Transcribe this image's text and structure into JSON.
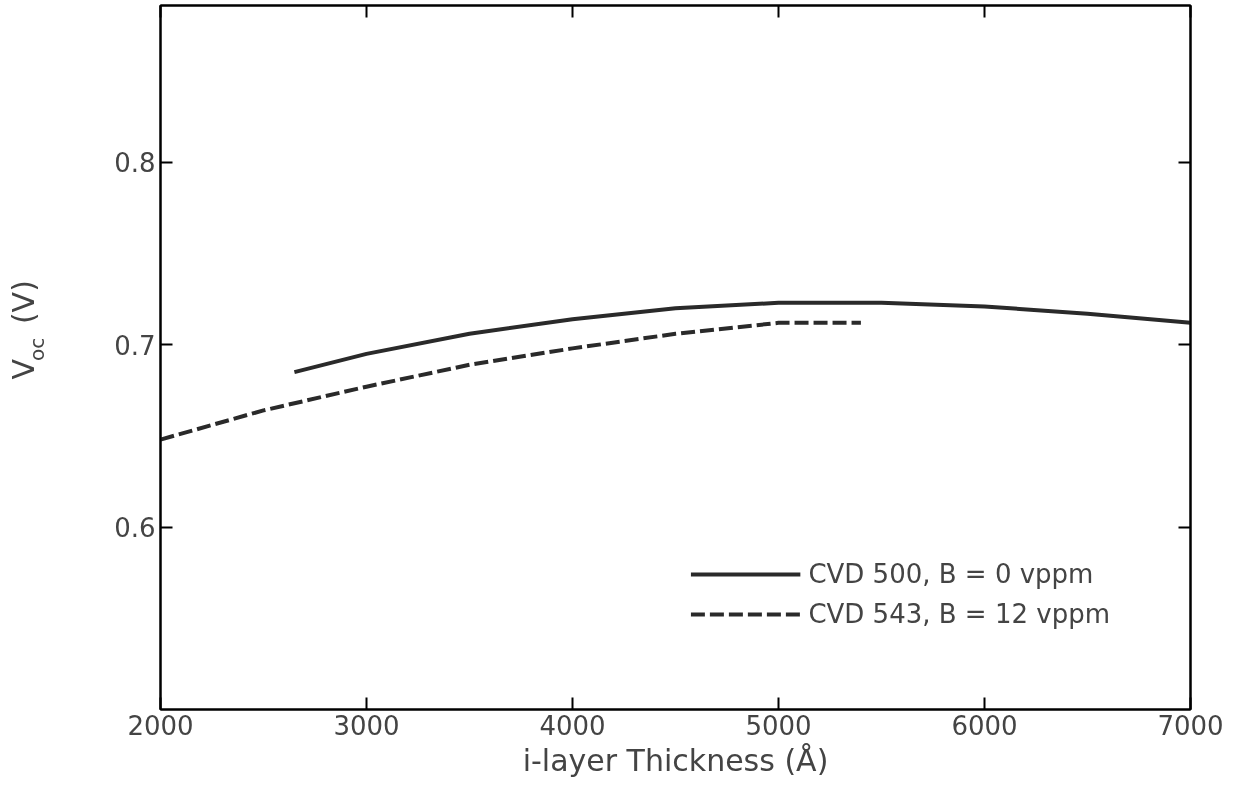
{
  "chart_data": {
    "type": "line",
    "xlabel": "i-layer Thickness (Å)",
    "ylabel": "V$_{oc}$ (V)",
    "xlim": [
      2000,
      7000
    ],
    "ylim": [
      0.5,
      0.886
    ],
    "xticks": [
      2000,
      3000,
      4000,
      5000,
      6000,
      7000
    ],
    "yticks": [
      0.6,
      0.7,
      0.8
    ],
    "grid": false,
    "legend": "bottom right",
    "marker": "none",
    "series": [
      {
        "name": "CVD 500, B = 0 vppm",
        "color": "#2a2a2a",
        "line_style": "solid",
        "x": [
          2650,
          3000,
          3500,
          4000,
          4500,
          5000,
          5500,
          6000,
          6500,
          7000
        ],
        "values": [
          0.685,
          0.695,
          0.706,
          0.714,
          0.72,
          0.723,
          0.723,
          0.721,
          0.717,
          0.712
        ]
      },
      {
        "name": "CVD 543, B = 12 vppm",
        "color": "#2a2a2a",
        "line_style": "dashed",
        "x": [
          2000,
          2500,
          3000,
          3500,
          4000,
          4500,
          5000,
          5400
        ],
        "values": [
          0.648,
          0.664,
          0.677,
          0.689,
          0.698,
          0.706,
          0.712,
          0.712
        ]
      }
    ]
  }
}
